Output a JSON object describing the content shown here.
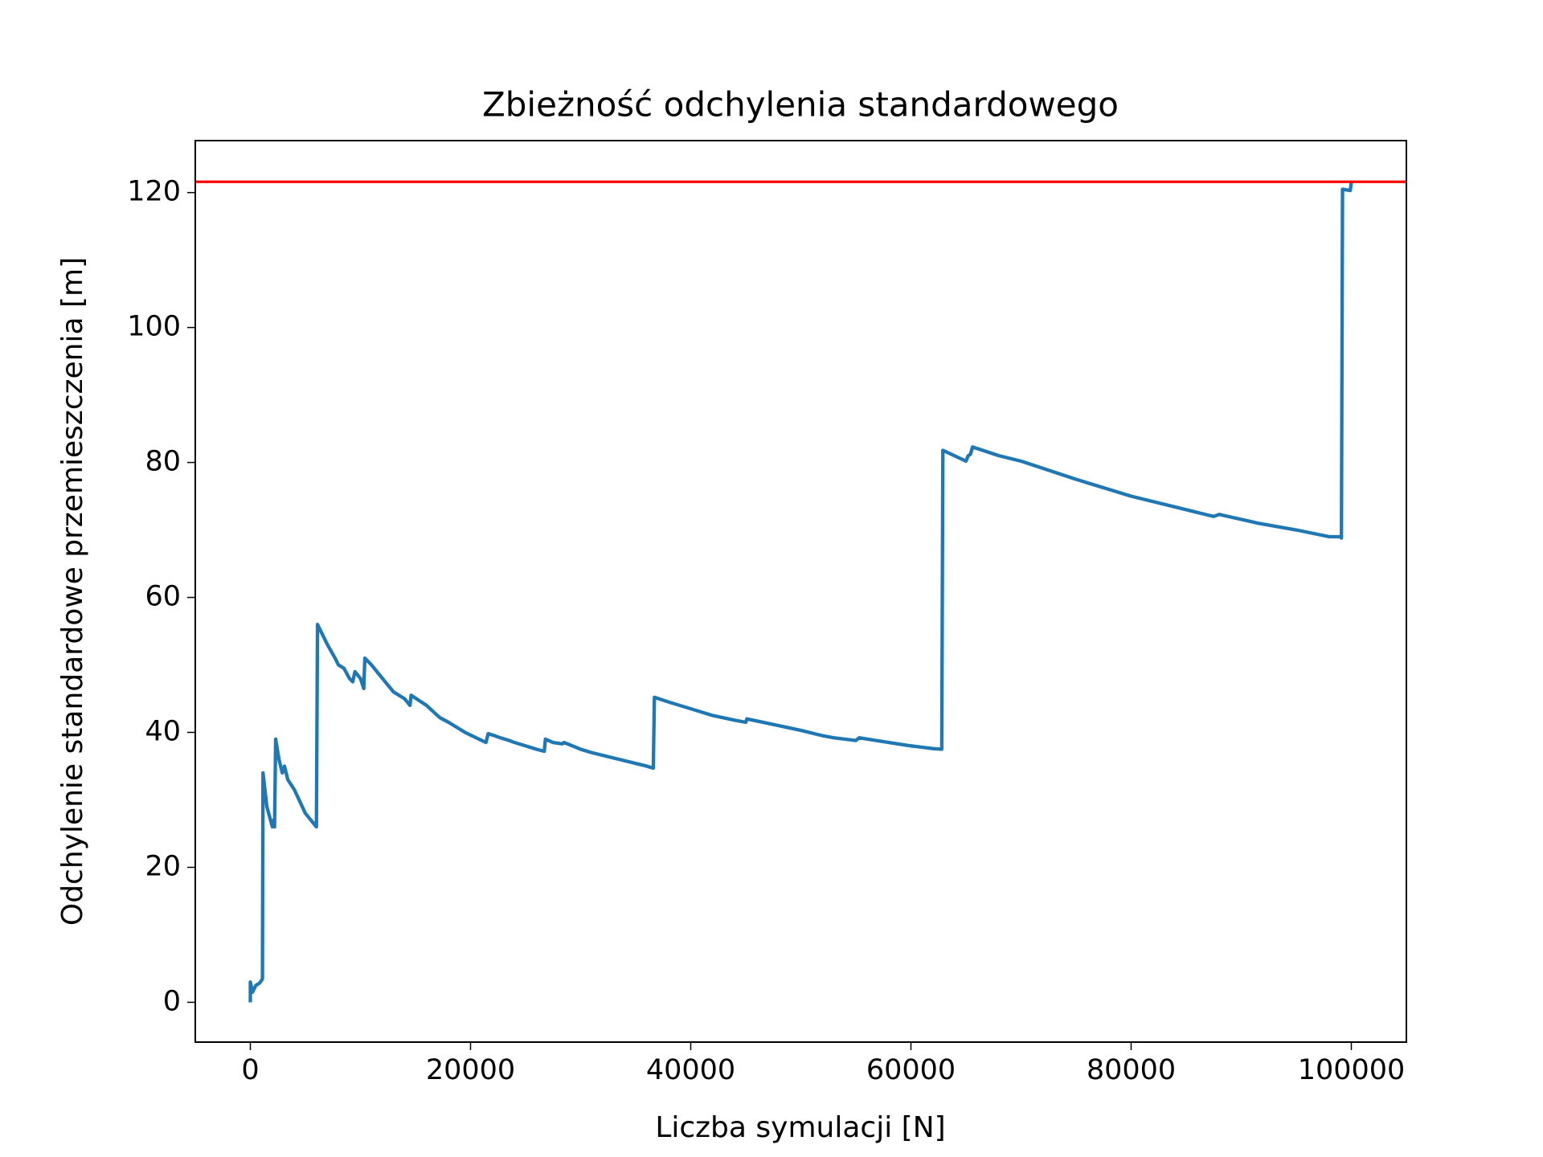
{
  "chart_data": {
    "type": "line",
    "title": "Zbieżność odchylenia standardowego",
    "x_label": "Liczba symulacji [N]",
    "y_label": "Odchylenie standardowe przemieszczenia [m]",
    "xlim": [
      -5000,
      105000
    ],
    "ylim": [
      -5.9,
      127.7
    ],
    "xticks": [
      0,
      20000,
      40000,
      60000,
      80000,
      100000
    ],
    "yticks": [
      0,
      20,
      40,
      60,
      80,
      100,
      120
    ],
    "hline": {
      "value": 121.6,
      "color": "#ff0000"
    },
    "series": [
      {
        "color": "#1f77b4",
        "x": [
          0,
          0,
          200,
          500,
          800,
          1000,
          1100,
          1150,
          1500,
          2000,
          2100,
          2200,
          2300,
          2600,
          2900,
          3100,
          3400,
          3800,
          4000,
          5000,
          6000,
          6100,
          7000,
          7700,
          8000,
          8500,
          9000,
          9300,
          9500,
          10000,
          10300,
          10400,
          11000,
          12000,
          13000,
          14000,
          14500,
          14600,
          16000,
          17000,
          17200,
          18000,
          19500,
          20500,
          21400,
          21600,
          22200,
          22700,
          23500,
          24000,
          25000,
          26000,
          26700,
          26800,
          27500,
          28300,
          28500,
          30000,
          31000,
          33000,
          36000,
          36600,
          36700,
          38000,
          40000,
          42000,
          44000,
          45000,
          45100,
          48000,
          50000,
          52000,
          53000,
          55000,
          55300,
          58000,
          60000,
          62000,
          62800,
          62900,
          65000,
          65200,
          65400,
          65600,
          68000,
          70000,
          75000,
          76000,
          80000,
          85000,
          87500,
          88000,
          91000,
          91500,
          95000,
          98000,
          99000,
          99100,
          99200,
          99900,
          100000
        ],
        "values": [
          0,
          3,
          1.5,
          2.5,
          2.8,
          3.2,
          3.5,
          34,
          29,
          26,
          27,
          26,
          39,
          36,
          34,
          35,
          33,
          32,
          31.5,
          28,
          26,
          56,
          53,
          51,
          50,
          49.5,
          48,
          47.5,
          49,
          48,
          46.5,
          51,
          50,
          48,
          46,
          45,
          44,
          45.5,
          44,
          42.5,
          42.2,
          41.5,
          40,
          39.2,
          38.5,
          39.8,
          39.5,
          39.2,
          38.8,
          38.5,
          38,
          37.5,
          37.2,
          39,
          38.5,
          38.3,
          38.5,
          37.5,
          37,
          36.2,
          35,
          34.7,
          45.2,
          44.5,
          43.5,
          42.5,
          41.8,
          41.5,
          42,
          41,
          40.3,
          39.5,
          39.2,
          38.8,
          39.2,
          38.5,
          38,
          37.6,
          37.5,
          81.8,
          80.2,
          81,
          81.2,
          82.3,
          81,
          80.2,
          77.5,
          77,
          75,
          73,
          72,
          72.3,
          71.2,
          71,
          70,
          69,
          69,
          68.8,
          120.5,
          120.3,
          121.5
        ]
      }
    ]
  }
}
